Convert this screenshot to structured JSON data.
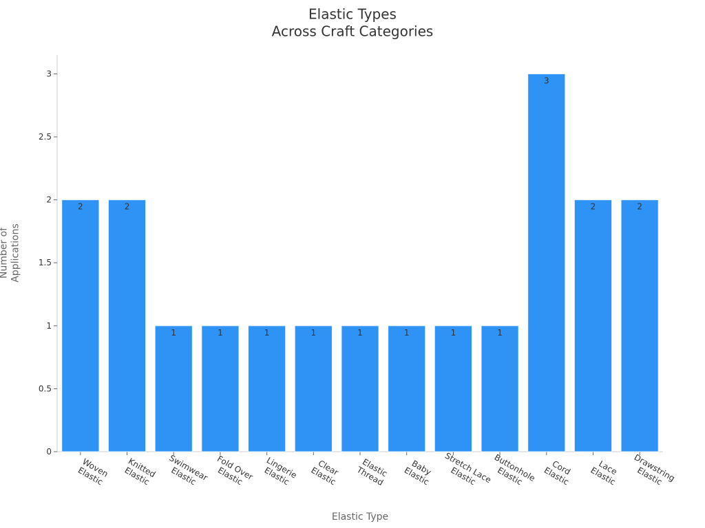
{
  "chart_data": {
    "type": "bar",
    "title": "Elastic Types\nAcross Craft Categories",
    "x_label": "Elastic Type",
    "y_label": "Number of\nApplications",
    "categories": [
      "Woven\nElastic",
      "Knitted\nElastic",
      "Swimwear\nElastic",
      "Fold Over\nElastic",
      "Lingerie\nElastic",
      "Clear\nElastic",
      "Elastic\nThread",
      "Baby\nElastic",
      "Stretch Lace\nElastic",
      "Buttonhole\nElastic",
      "Cord\nElastic",
      "Lace\nElastic",
      "Drawstring\nElastic"
    ],
    "values": [
      2,
      2,
      1,
      1,
      1,
      1,
      1,
      1,
      1,
      1,
      3,
      2,
      2
    ],
    "color": "#2e93f5",
    "ylim": [
      0,
      3.15
    ],
    "yticks": [
      0,
      0.5,
      1,
      1.5,
      2,
      2.5,
      3
    ],
    "grid": false
  }
}
